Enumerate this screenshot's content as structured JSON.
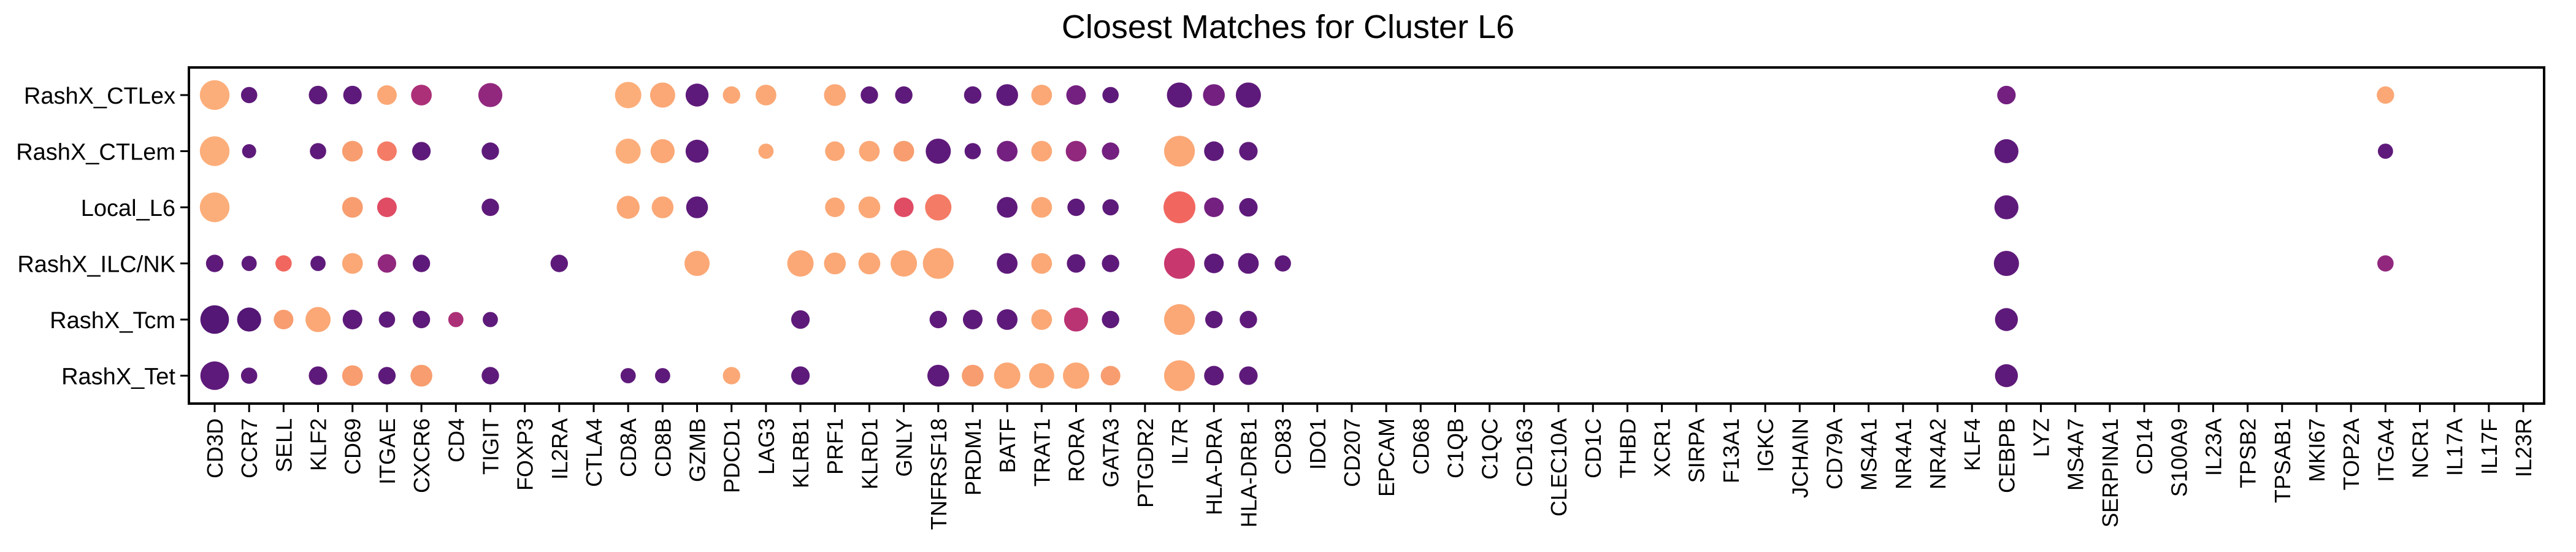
{
  "chart_data": {
    "type": "dot",
    "title": "Closest Matches for Cluster L6",
    "xlabel": "",
    "ylabel": "",
    "genes": [
      "CD3D",
      "CCR7",
      "SELL",
      "KLF2",
      "CD69",
      "ITGAE",
      "CXCR6",
      "CD4",
      "TIGIT",
      "FOXP3",
      "IL2RA",
      "CTLA4",
      "CD8A",
      "CD8B",
      "GZMB",
      "PDCD1",
      "LAG3",
      "KLRB1",
      "PRF1",
      "KLRD1",
      "GNLY",
      "TNFRSF18",
      "PRDM1",
      "BATF",
      "TRAT1",
      "RORA",
      "GATA3",
      "PTGDR2",
      "IL7R",
      "HLA-DRA",
      "HLA-DRB1",
      "CD83",
      "IDO1",
      "CD207",
      "EPCAM",
      "CD68",
      "C1QB",
      "C1QC",
      "CD163",
      "CLEC10A",
      "CD1C",
      "THBD",
      "XCR1",
      "SIRPA",
      "F13A1",
      "IGKC",
      "JCHAIN",
      "CD79A",
      "MS4A1",
      "NR4A1",
      "NR4A2",
      "KLF4",
      "CEBPB",
      "LYZ",
      "MS4A7",
      "SERPINA1",
      "CD14",
      "S100A9",
      "IL23A",
      "TPSB2",
      "TPSAB1",
      "MKI67",
      "TOP2A",
      "ITGA4",
      "NCR1",
      "IL17A",
      "IL17F",
      "IL23R"
    ],
    "rows": [
      "RashX_CTLex",
      "RashX_CTLem",
      "Local_L6",
      "RashX_ILC/NK",
      "RashX_Tcm",
      "RashX_Tet"
    ],
    "color_scale": [
      "#4a1470",
      "#6b1e80",
      "#9a2a7e",
      "#c8386f",
      "#ef5a5d",
      "#f89b6e",
      "#fcae7a"
    ],
    "size_scale_max": 1,
    "color_scale_max": 1,
    "points": [
      [
        "RashX_CTLex",
        "CD3D",
        1.0,
        1.0
      ],
      [
        "RashX_CTLex",
        "CCR7",
        0.4,
        0.1
      ],
      [
        "RashX_CTLex",
        "KLF2",
        0.5,
        0.1
      ],
      [
        "RashX_CTLex",
        "CD69",
        0.5,
        0.1
      ],
      [
        "RashX_CTLex",
        "ITGAE",
        0.55,
        0.95
      ],
      [
        "RashX_CTLex",
        "CXCR6",
        0.6,
        0.4
      ],
      [
        "RashX_CTLex",
        "TIGIT",
        0.75,
        0.3
      ],
      [
        "RashX_CTLex",
        "CD8A",
        0.85,
        1.0
      ],
      [
        "RashX_CTLex",
        "CD8B",
        0.8,
        0.95
      ],
      [
        "RashX_CTLex",
        "GZMB",
        0.7,
        0.1
      ],
      [
        "RashX_CTLex",
        "PDCD1",
        0.45,
        0.95
      ],
      [
        "RashX_CTLex",
        "LAG3",
        0.6,
        0.95
      ],
      [
        "RashX_CTLex",
        "PRF1",
        0.65,
        0.95
      ],
      [
        "RashX_CTLex",
        "KLRD1",
        0.45,
        0.1
      ],
      [
        "RashX_CTLex",
        "GNLY",
        0.45,
        0.1
      ],
      [
        "RashX_CTLex",
        "PRDM1",
        0.45,
        0.1
      ],
      [
        "RashX_CTLex",
        "BATF",
        0.65,
        0.1
      ],
      [
        "RashX_CTLex",
        "TRAT1",
        0.6,
        0.95
      ],
      [
        "RashX_CTLex",
        "RORA",
        0.55,
        0.2
      ],
      [
        "RashX_CTLex",
        "GATA3",
        0.4,
        0.1
      ],
      [
        "RashX_CTLex",
        "IL7R",
        0.8,
        0.1
      ],
      [
        "RashX_CTLex",
        "HLA-DRA",
        0.65,
        0.2
      ],
      [
        "RashX_CTLex",
        "HLA-DRB1",
        0.8,
        0.1
      ],
      [
        "RashX_CTLex",
        "CEBPB",
        0.5,
        0.2
      ],
      [
        "RashX_CTLex",
        "ITGA4",
        0.45,
        0.95
      ],
      [
        "RashX_CTLem",
        "CD3D",
        1.0,
        1.0
      ],
      [
        "RashX_CTLem",
        "CCR7",
        0.3,
        0.1
      ],
      [
        "RashX_CTLem",
        "KLF2",
        0.4,
        0.1
      ],
      [
        "RashX_CTLem",
        "CD69",
        0.6,
        0.85
      ],
      [
        "RashX_CTLem",
        "ITGAE",
        0.55,
        0.75
      ],
      [
        "RashX_CTLem",
        "CXCR6",
        0.5,
        0.1
      ],
      [
        "RashX_CTLem",
        "TIGIT",
        0.45,
        0.1
      ],
      [
        "RashX_CTLem",
        "CD8A",
        0.8,
        1.0
      ],
      [
        "RashX_CTLem",
        "CD8B",
        0.75,
        0.95
      ],
      [
        "RashX_CTLem",
        "GZMB",
        0.7,
        0.1
      ],
      [
        "RashX_CTLem",
        "LAG3",
        0.35,
        0.95
      ],
      [
        "RashX_CTLem",
        "PRF1",
        0.55,
        0.95
      ],
      [
        "RashX_CTLem",
        "KLRD1",
        0.6,
        0.95
      ],
      [
        "RashX_CTLem",
        "GNLY",
        0.6,
        0.85
      ],
      [
        "RashX_CTLem",
        "TNFRSF18",
        0.8,
        0.1
      ],
      [
        "RashX_CTLem",
        "PRDM1",
        0.4,
        0.1
      ],
      [
        "RashX_CTLem",
        "BATF",
        0.6,
        0.2
      ],
      [
        "RashX_CTLem",
        "TRAT1",
        0.6,
        0.95
      ],
      [
        "RashX_CTLem",
        "RORA",
        0.6,
        0.3
      ],
      [
        "RashX_CTLem",
        "GATA3",
        0.45,
        0.2
      ],
      [
        "RashX_CTLem",
        "IL7R",
        1.05,
        0.95
      ],
      [
        "RashX_CTLem",
        "HLA-DRA",
        0.55,
        0.1
      ],
      [
        "RashX_CTLem",
        "HLA-DRB1",
        0.5,
        0.1
      ],
      [
        "RashX_CTLem",
        "CEBPB",
        0.75,
        0.1
      ],
      [
        "RashX_CTLem",
        "ITGA4",
        0.35,
        0.1
      ],
      [
        "Local_L6",
        "CD3D",
        1.0,
        1.0
      ],
      [
        "Local_L6",
        "CD69",
        0.6,
        0.85
      ],
      [
        "Local_L6",
        "ITGAE",
        0.55,
        0.6
      ],
      [
        "Local_L6",
        "TIGIT",
        0.45,
        0.1
      ],
      [
        "Local_L6",
        "CD8A",
        0.7,
        0.95
      ],
      [
        "Local_L6",
        "CD8B",
        0.65,
        0.95
      ],
      [
        "Local_L6",
        "GZMB",
        0.65,
        0.1
      ],
      [
        "Local_L6",
        "PRF1",
        0.55,
        0.95
      ],
      [
        "Local_L6",
        "KLRD1",
        0.65,
        0.95
      ],
      [
        "Local_L6",
        "GNLY",
        0.55,
        0.6
      ],
      [
        "Local_L6",
        "TNFRSF18",
        0.85,
        0.75
      ],
      [
        "Local_L6",
        "BATF",
        0.6,
        0.1
      ],
      [
        "Local_L6",
        "TRAT1",
        0.6,
        0.95
      ],
      [
        "Local_L6",
        "RORA",
        0.45,
        0.1
      ],
      [
        "Local_L6",
        "GATA3",
        0.4,
        0.1
      ],
      [
        "Local_L6",
        "IL7R",
        1.1,
        0.7
      ],
      [
        "Local_L6",
        "HLA-DRA",
        0.55,
        0.2
      ],
      [
        "Local_L6",
        "HLA-DRB1",
        0.5,
        0.1
      ],
      [
        "Local_L6",
        "CEBPB",
        0.75,
        0.1
      ],
      [
        "RashX_ILC/NK",
        "CD3D",
        0.45,
        0.1
      ],
      [
        "RashX_ILC/NK",
        "CCR7",
        0.35,
        0.1
      ],
      [
        "RashX_ILC/NK",
        "SELL",
        0.4,
        0.7
      ],
      [
        "RashX_ILC/NK",
        "KLF2",
        0.35,
        0.1
      ],
      [
        "RashX_ILC/NK",
        "CD69",
        0.6,
        0.95
      ],
      [
        "RashX_ILC/NK",
        "ITGAE",
        0.5,
        0.3
      ],
      [
        "RashX_ILC/NK",
        "CXCR6",
        0.45,
        0.1
      ],
      [
        "RashX_ILC/NK",
        "IL2RA",
        0.45,
        0.1
      ],
      [
        "RashX_ILC/NK",
        "GZMB",
        0.8,
        0.95
      ],
      [
        "RashX_ILC/NK",
        "KLRB1",
        0.85,
        0.95
      ],
      [
        "RashX_ILC/NK",
        "PRF1",
        0.65,
        0.95
      ],
      [
        "RashX_ILC/NK",
        "KLRD1",
        0.65,
        0.95
      ],
      [
        "RashX_ILC/NK",
        "GNLY",
        0.85,
        0.95
      ],
      [
        "RashX_ILC/NK",
        "TNFRSF18",
        1.05,
        0.95
      ],
      [
        "RashX_ILC/NK",
        "BATF",
        0.6,
        0.1
      ],
      [
        "RashX_ILC/NK",
        "TRAT1",
        0.6,
        0.95
      ],
      [
        "RashX_ILC/NK",
        "RORA",
        0.5,
        0.1
      ],
      [
        "RashX_ILC/NK",
        "GATA3",
        0.45,
        0.1
      ],
      [
        "RashX_ILC/NK",
        "IL7R",
        1.05,
        0.5
      ],
      [
        "RashX_ILC/NK",
        "HLA-DRA",
        0.55,
        0.1
      ],
      [
        "RashX_ILC/NK",
        "HLA-DRB1",
        0.6,
        0.1
      ],
      [
        "RashX_ILC/NK",
        "CD83",
        0.4,
        0.1
      ],
      [
        "RashX_ILC/NK",
        "CEBPB",
        0.8,
        0.1
      ],
      [
        "RashX_ILC/NK",
        "ITGA4",
        0.4,
        0.3
      ],
      [
        "RashX_Tcm",
        "CD3D",
        0.95,
        0.05
      ],
      [
        "RashX_Tcm",
        "CCR7",
        0.75,
        0.05
      ],
      [
        "RashX_Tcm",
        "SELL",
        0.55,
        0.85
      ],
      [
        "RashX_Tcm",
        "KLF2",
        0.8,
        0.95
      ],
      [
        "RashX_Tcm",
        "CD69",
        0.55,
        0.1
      ],
      [
        "RashX_Tcm",
        "ITGAE",
        0.4,
        0.1
      ],
      [
        "RashX_Tcm",
        "CXCR6",
        0.45,
        0.1
      ],
      [
        "RashX_Tcm",
        "CD4",
        0.35,
        0.4
      ],
      [
        "RashX_Tcm",
        "TIGIT",
        0.35,
        0.1
      ],
      [
        "RashX_Tcm",
        "KLRB1",
        0.5,
        0.1
      ],
      [
        "RashX_Tcm",
        "TNFRSF18",
        0.45,
        0.1
      ],
      [
        "RashX_Tcm",
        "PRDM1",
        0.55,
        0.1
      ],
      [
        "RashX_Tcm",
        "BATF",
        0.6,
        0.1
      ],
      [
        "RashX_Tcm",
        "TRAT1",
        0.6,
        0.95
      ],
      [
        "RashX_Tcm",
        "RORA",
        0.75,
        0.45
      ],
      [
        "RashX_Tcm",
        "GATA3",
        0.45,
        0.1
      ],
      [
        "RashX_Tcm",
        "IL7R",
        1.05,
        0.95
      ],
      [
        "RashX_Tcm",
        "HLA-DRA",
        0.45,
        0.1
      ],
      [
        "RashX_Tcm",
        "HLA-DRB1",
        0.45,
        0.1
      ],
      [
        "RashX_Tcm",
        "CEBPB",
        0.7,
        0.1
      ],
      [
        "RashX_Tet",
        "CD3D",
        0.95,
        0.1
      ],
      [
        "RashX_Tet",
        "CCR7",
        0.4,
        0.1
      ],
      [
        "RashX_Tet",
        "KLF2",
        0.5,
        0.1
      ],
      [
        "RashX_Tet",
        "CD69",
        0.6,
        0.85
      ],
      [
        "RashX_Tet",
        "ITGAE",
        0.45,
        0.1
      ],
      [
        "RashX_Tet",
        "CXCR6",
        0.65,
        0.85
      ],
      [
        "RashX_Tet",
        "TIGIT",
        0.45,
        0.1
      ],
      [
        "RashX_Tet",
        "CD8A",
        0.35,
        0.1
      ],
      [
        "RashX_Tet",
        "CD8B",
        0.35,
        0.1
      ],
      [
        "RashX_Tet",
        "PDCD1",
        0.45,
        0.95
      ],
      [
        "RashX_Tet",
        "KLRB1",
        0.5,
        0.1
      ],
      [
        "RashX_Tet",
        "TNFRSF18",
        0.65,
        0.1
      ],
      [
        "RashX_Tet",
        "PRDM1",
        0.65,
        0.85
      ],
      [
        "RashX_Tet",
        "BATF",
        0.85,
        0.95
      ],
      [
        "RashX_Tet",
        "TRAT1",
        0.8,
        0.95
      ],
      [
        "RashX_Tet",
        "RORA",
        0.85,
        0.95
      ],
      [
        "RashX_Tet",
        "GATA3",
        0.55,
        0.85
      ],
      [
        "RashX_Tet",
        "IL7R",
        1.05,
        0.95
      ],
      [
        "RashX_Tet",
        "HLA-DRA",
        0.55,
        0.1
      ],
      [
        "RashX_Tet",
        "HLA-DRB1",
        0.5,
        0.1
      ],
      [
        "RashX_Tet",
        "CEBPB",
        0.7,
        0.1
      ]
    ]
  }
}
